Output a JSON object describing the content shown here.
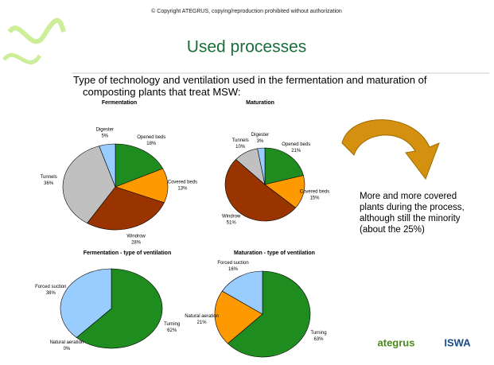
{
  "copyright": "© Copyright ATEGRUS, copying/reproduction prohibited without authorization",
  "title": "Used processes",
  "intro": "Type of technology and ventilation used in the fermentation and maturation of composting plants that treat MSW:",
  "note": "More and more covered plants during the process, although still the minority (about the 25%)",
  "logos": [
    "ategrus",
    "ISWA"
  ],
  "chart_data": [
    {
      "type": "pie",
      "title": "Fermentation",
      "categories": [
        "Opened beds",
        "Covered beds",
        "Windrow",
        "Tunnels",
        "Digester"
      ],
      "values": [
        18,
        13,
        28,
        36,
        5
      ],
      "value_labels": [
        "18%",
        "13%",
        "28%",
        "36%",
        "5%"
      ],
      "colors": [
        "#1e8c1e",
        "#ff9900",
        "#993300",
        "#c0c0c0",
        "#99ccff"
      ]
    },
    {
      "type": "pie",
      "title": "Maturation",
      "categories": [
        "Opened beds",
        "Covered beds",
        "Windrow",
        "Tunnels",
        "Digester"
      ],
      "values": [
        21,
        15,
        51,
        10,
        3
      ],
      "value_labels": [
        "21%",
        "15%",
        "51%",
        "10%",
        "3%"
      ],
      "colors": [
        "#1e8c1e",
        "#ff9900",
        "#993300",
        "#c0c0c0",
        "#99ccff"
      ]
    },
    {
      "type": "pie",
      "title": "Fermentation - type of ventilation",
      "categories": [
        "Turning",
        "Natural aeration",
        "Forced suction"
      ],
      "values": [
        62,
        0,
        38
      ],
      "value_labels": [
        "62%",
        "0%",
        "38%"
      ],
      "colors": [
        "#1e8c1e",
        "#ff9900",
        "#99ccff"
      ]
    },
    {
      "type": "pie",
      "title": "Maturation - type of ventilation",
      "categories": [
        "Turning",
        "Natural aeration",
        "Forced suction"
      ],
      "values": [
        63,
        21,
        16
      ],
      "value_labels": [
        "63%",
        "21%",
        "16%"
      ],
      "colors": [
        "#1e8c1e",
        "#ff9900",
        "#99ccff"
      ]
    }
  ]
}
